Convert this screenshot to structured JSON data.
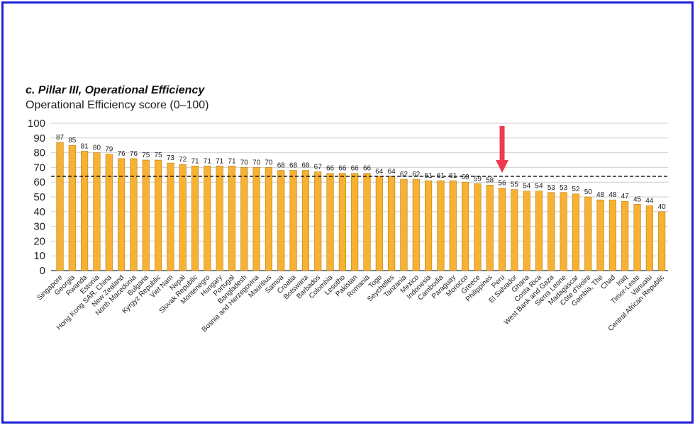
{
  "chart_data": {
    "type": "bar",
    "title": "c. Pillar III, Operational Efficiency",
    "ylabel": "Operational Efficiency score (0–100)",
    "xlabel": "",
    "ylim": [
      0,
      100
    ],
    "yticks": [
      0,
      10,
      20,
      30,
      40,
      50,
      60,
      70,
      80,
      90,
      100
    ],
    "grid": true,
    "reference_line": 64,
    "highlight": "Peru",
    "categories": [
      "Singapore",
      "Georgia",
      "Rwanda",
      "Estonia",
      "Hong Kong SAR, China",
      "New Zealand",
      "North Macedonia",
      "Bulgaria",
      "Kyrgyz Republic",
      "Viet Nam",
      "Nepal",
      "Slovak Republic",
      "Montenegro",
      "Hungary",
      "Portugal",
      "Bangladesh",
      "Bosnia and Herzegovina",
      "Mauritius",
      "Samoa",
      "Croatia",
      "Botswana",
      "Barbados",
      "Colombia",
      "Lesotho",
      "Pakistan",
      "Romania",
      "Togo",
      "Seychelles",
      "Tanzania",
      "Mexico",
      "Indonesia",
      "Cambodia",
      "Paraguay",
      "Morocco",
      "Greece",
      "Philippines",
      "Peru",
      "El Salvador",
      "Ghana",
      "Costa Rica",
      "West Bank and Gaza",
      "Sierra Leone",
      "Madagascar",
      "Côte d'Ivoire",
      "Gambia, The",
      "Chad",
      "Iraq",
      "Timor-Leste",
      "Vanuatu",
      "Central African Republic"
    ],
    "values": [
      87,
      85,
      81,
      80,
      79,
      76,
      76,
      75,
      75,
      73,
      72,
      71,
      71,
      71,
      71,
      70,
      70,
      70,
      68,
      68,
      68,
      67,
      66,
      66,
      66,
      66,
      64,
      64,
      62,
      62,
      61,
      61,
      61,
      60,
      59,
      58,
      56,
      55,
      54,
      54,
      53,
      53,
      52,
      50,
      48,
      48,
      47,
      45,
      44,
      40
    ],
    "colors": {
      "bar": "#f7b233",
      "bar_edge": "#b87a10",
      "grid": "#cfcfcf",
      "arrow": "#ef3a4f",
      "frame": "#1f1fd6"
    }
  }
}
